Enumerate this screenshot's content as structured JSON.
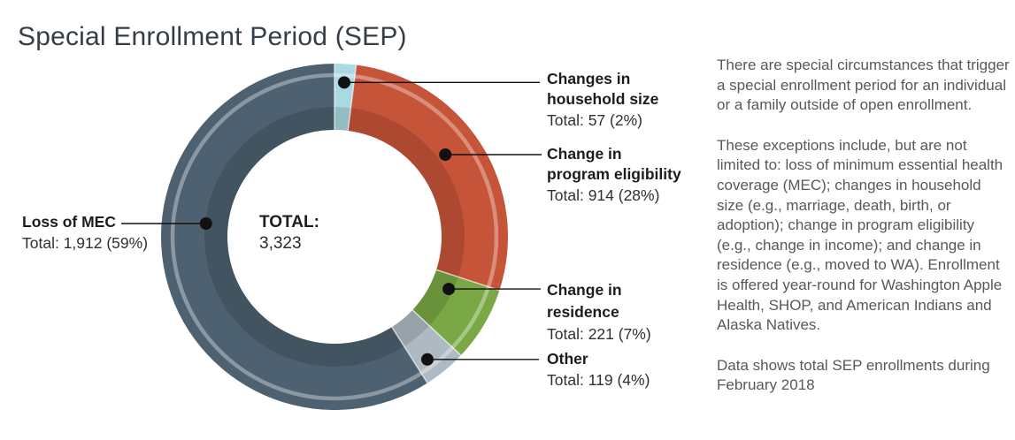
{
  "page": {
    "title": "Special Enrollment Period (SEP)"
  },
  "chart_data": {
    "type": "donut",
    "title": "Special Enrollment Period (SEP)",
    "center_label": "TOTAL:",
    "center_value": "3,323",
    "legend_position": "callouts",
    "slices": [
      {
        "label": "Changes in\nhousehold size",
        "value": 57,
        "pct": 2,
        "display": "Total: 57 (2%)",
        "color": "#a9d9e1"
      },
      {
        "label": "Change in\nprogram eligibility",
        "value": 914,
        "pct": 28,
        "display": "Total: 914 (28%)",
        "color": "#c65438"
      },
      {
        "label": "Change in\nresidence",
        "value": 221,
        "pct": 7,
        "display": "Total: 221 (7%)",
        "color": "#7aa845"
      },
      {
        "label": "Other",
        "value": 119,
        "pct": 4,
        "display": "Total: 119 (4%)",
        "color": "#aebac3"
      },
      {
        "label": "Loss of MEC",
        "value": 1912,
        "pct": 59,
        "display": "Total: 1,912 (59%)",
        "color": "#4d6170"
      }
    ]
  },
  "description": {
    "paragraphs": [
      "There are special circumstances that trigger a special enrollment period for an individual or a family outside of open enrollment.",
      "These exceptions include, but are not limited to: loss of minimum essential health coverage (MEC); changes in household size (e.g., marriage, death, birth, or adoption); change in program eligibility (e.g., change in income); and change in residence (e.g., moved to WA). Enrollment is offered year-round for Washington Apple Health, SHOP, and American Indians and Alaska Natives.",
      "Data shows total SEP enrollments during February 2018"
    ]
  }
}
